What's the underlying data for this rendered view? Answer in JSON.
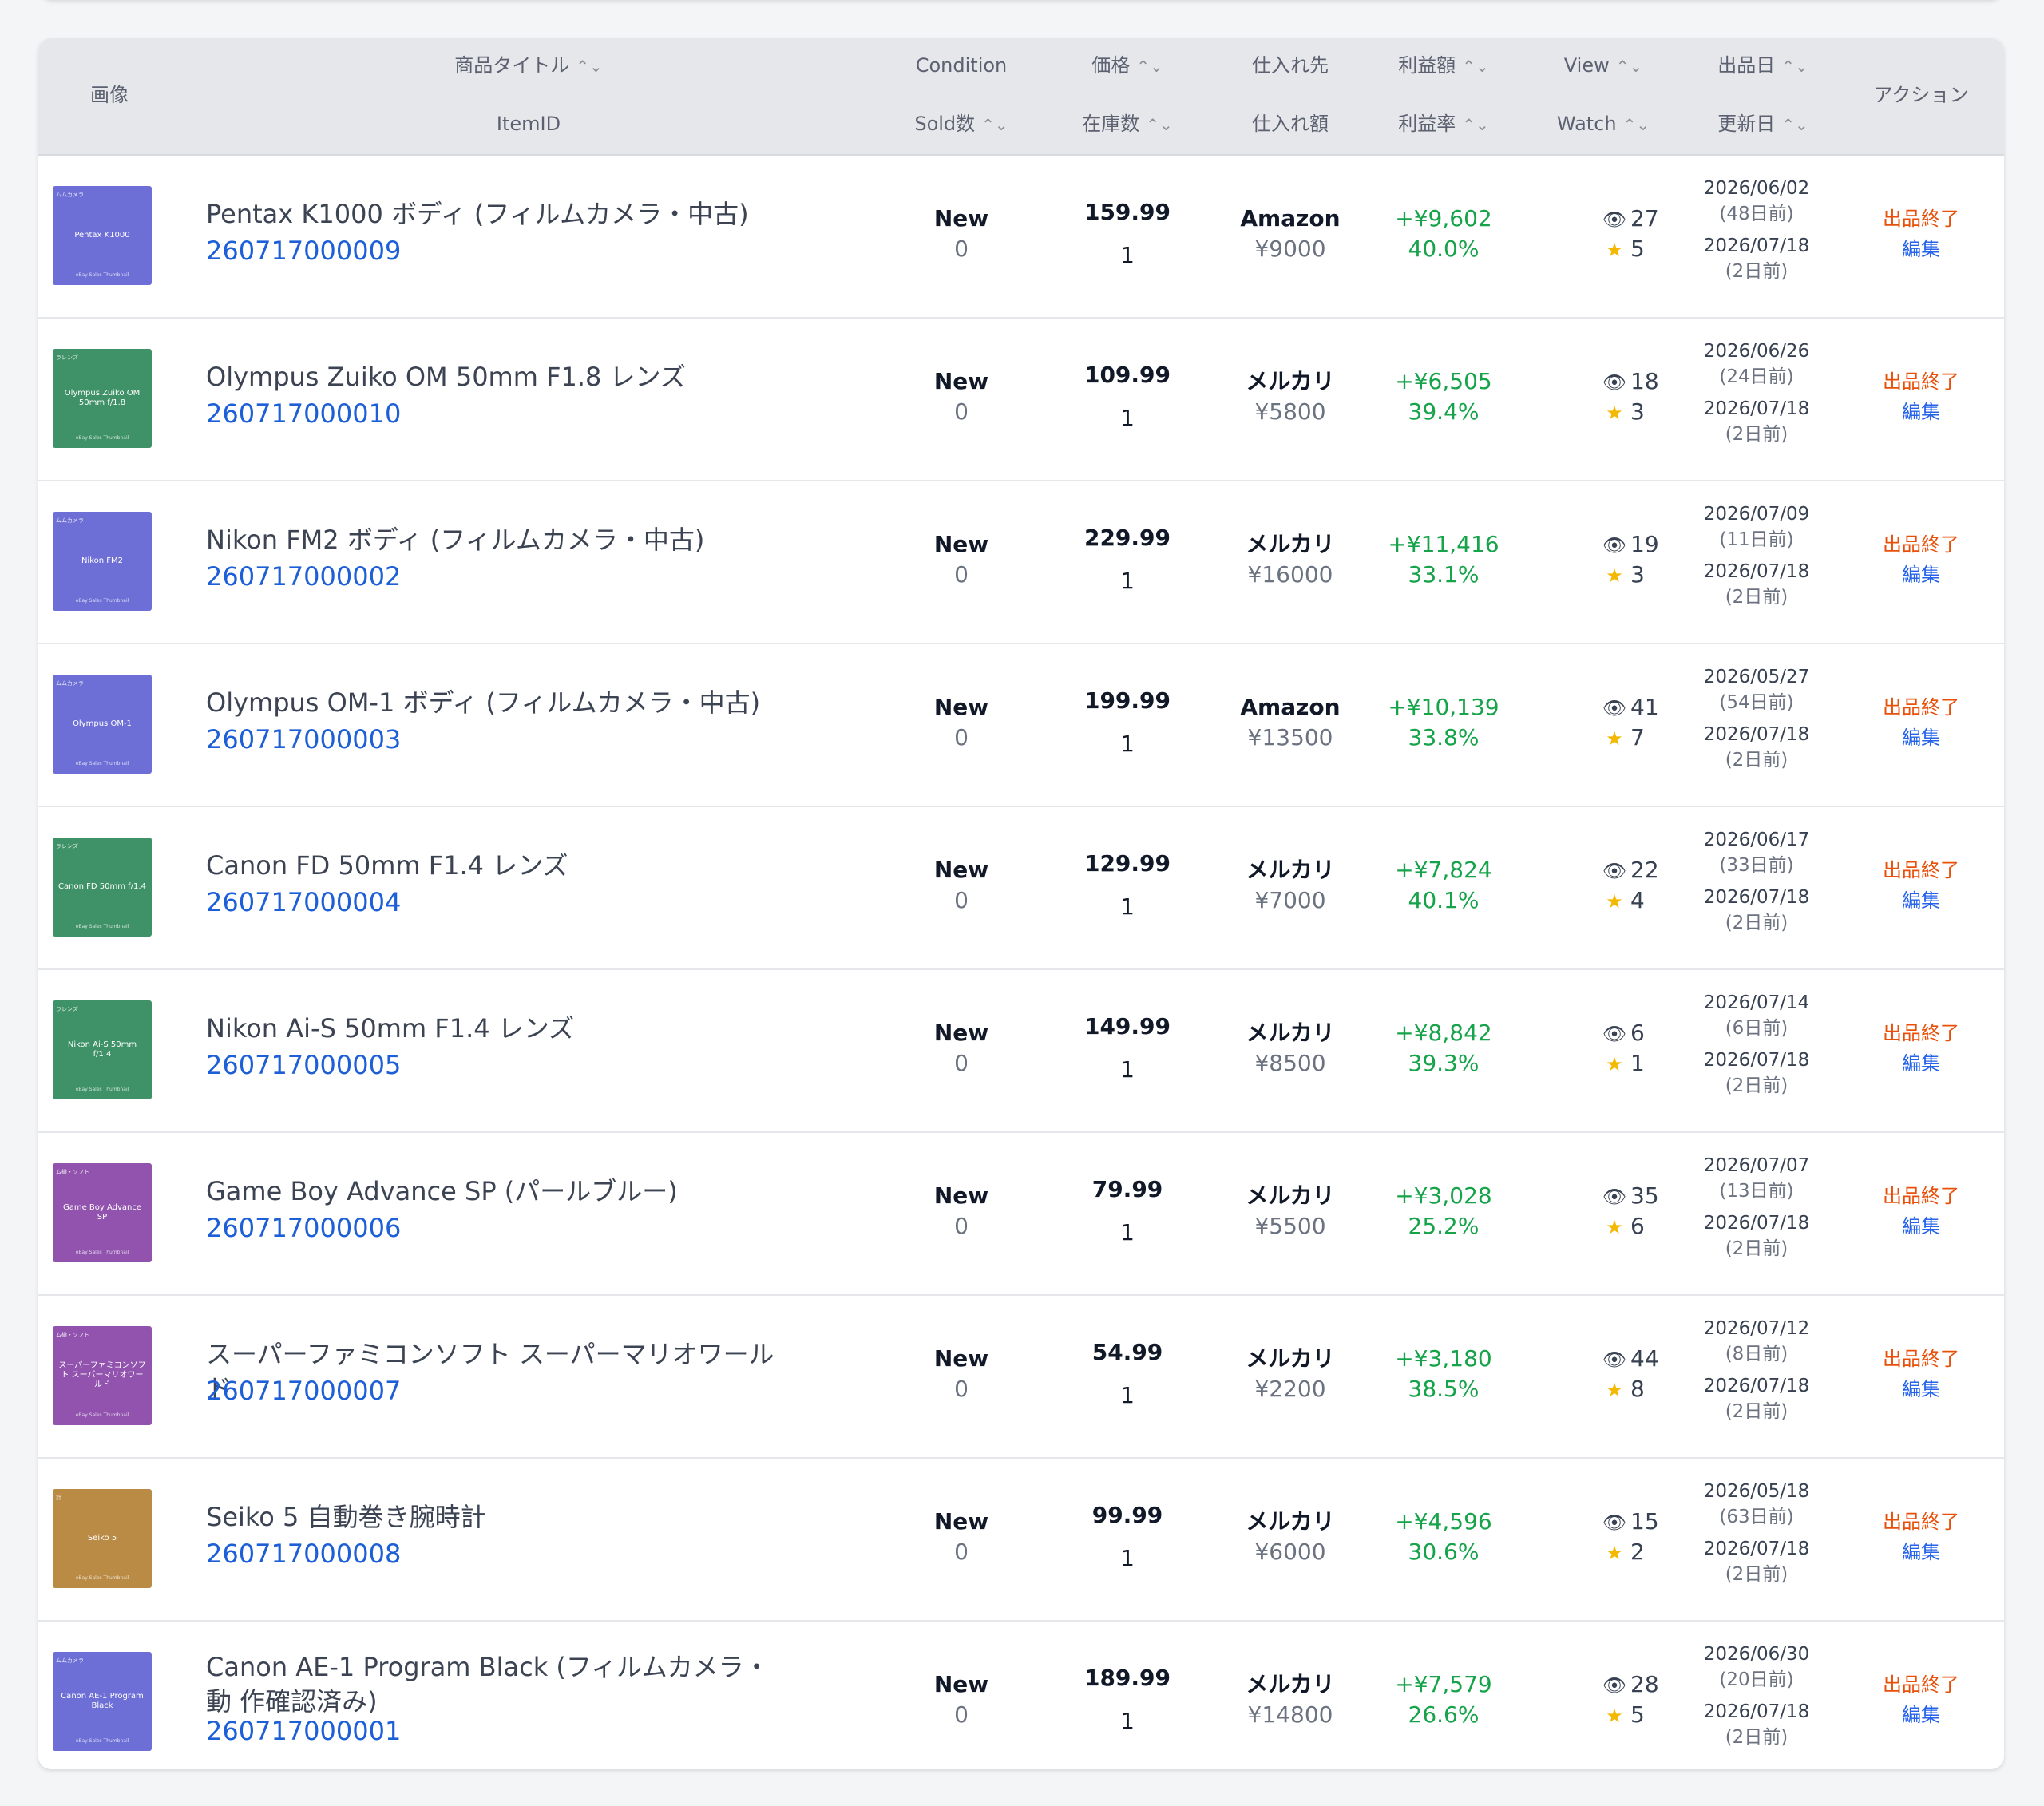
{
  "headers": {
    "image": "画像",
    "title": "商品タイトル",
    "itemid": "ItemID",
    "condition": "Condition",
    "sold": "Sold数",
    "price": "価格",
    "stock": "在庫数",
    "supplier": "仕入れ先",
    "cost": "仕入れ額",
    "profit": "利益額",
    "profit_rate": "利益率",
    "view": "View",
    "watch": "Watch",
    "listed": "出品日",
    "updated": "更新日",
    "action": "アクション"
  },
  "rows": [
    {
      "thumb_cat": "ムムカメラ",
      "thumb_text": "Pentax K1000",
      "thumb_src": "eBay Sales Thumbnail",
      "thumb_color": "#6e6fd6",
      "title": "Pentax K1000 ボディ (フィルムカメラ・中古)",
      "itemid": "260717000009",
      "condition": "New",
      "sold": "0",
      "price": "159.99",
      "stock": "1",
      "supplier": "Amazon",
      "cost": "¥9000",
      "profit": "+¥9,602",
      "rate": "40.0%",
      "view": "27",
      "watch": "5",
      "listed": "2026/06/02",
      "listed_ago": "(48日前)",
      "updated": "2026/07/18",
      "updated_ago": "(2日前)",
      "end": "出品終了",
      "edit": "編集"
    },
    {
      "thumb_cat": "ラレンズ",
      "thumb_text": "Olympus Zuiko OM 50mm f/1.8",
      "thumb_src": "eBay Sales Thumbnail",
      "thumb_color": "#3f9167",
      "title": "Olympus Zuiko OM 50mm F1.8 レンズ",
      "itemid": "260717000010",
      "condition": "New",
      "sold": "0",
      "price": "109.99",
      "stock": "1",
      "supplier": "メルカリ",
      "cost": "¥5800",
      "profit": "+¥6,505",
      "rate": "39.4%",
      "view": "18",
      "watch": "3",
      "listed": "2026/06/26",
      "listed_ago": "(24日前)",
      "updated": "2026/07/18",
      "updated_ago": "(2日前)",
      "end": "出品終了",
      "edit": "編集"
    },
    {
      "thumb_cat": "ムムカメラ",
      "thumb_text": "Nikon FM2",
      "thumb_src": "eBay Sales Thumbnail",
      "thumb_color": "#6e6fd6",
      "title": "Nikon FM2 ボディ (フィルムカメラ・中古)",
      "itemid": "260717000002",
      "condition": "New",
      "sold": "0",
      "price": "229.99",
      "stock": "1",
      "supplier": "メルカリ",
      "cost": "¥16000",
      "profit": "+¥11,416",
      "rate": "33.1%",
      "view": "19",
      "watch": "3",
      "listed": "2026/07/09",
      "listed_ago": "(11日前)",
      "updated": "2026/07/18",
      "updated_ago": "(2日前)",
      "end": "出品終了",
      "edit": "編集"
    },
    {
      "thumb_cat": "ムムカメラ",
      "thumb_text": "Olympus OM-1",
      "thumb_src": "eBay Sales Thumbnail",
      "thumb_color": "#6e6fd6",
      "title": "Olympus OM-1 ボディ (フィルムカメラ・中古)",
      "itemid": "260717000003",
      "condition": "New",
      "sold": "0",
      "price": "199.99",
      "stock": "1",
      "supplier": "Amazon",
      "cost": "¥13500",
      "profit": "+¥10,139",
      "rate": "33.8%",
      "view": "41",
      "watch": "7",
      "listed": "2026/05/27",
      "listed_ago": "(54日前)",
      "updated": "2026/07/18",
      "updated_ago": "(2日前)",
      "end": "出品終了",
      "edit": "編集"
    },
    {
      "thumb_cat": "ラレンズ",
      "thumb_text": "Canon FD 50mm f/1.4",
      "thumb_src": "eBay Sales Thumbnail",
      "thumb_color": "#3f9167",
      "title": "Canon FD 50mm F1.4 レンズ",
      "itemid": "260717000004",
      "condition": "New",
      "sold": "0",
      "price": "129.99",
      "stock": "1",
      "supplier": "メルカリ",
      "cost": "¥7000",
      "profit": "+¥7,824",
      "rate": "40.1%",
      "view": "22",
      "watch": "4",
      "listed": "2026/06/17",
      "listed_ago": "(33日前)",
      "updated": "2026/07/18",
      "updated_ago": "(2日前)",
      "end": "出品終了",
      "edit": "編集"
    },
    {
      "thumb_cat": "ラレンズ",
      "thumb_text": "Nikon Ai-S 50mm f/1.4",
      "thumb_src": "eBay Sales Thumbnail",
      "thumb_color": "#3f9167",
      "title": "Nikon Ai-S 50mm F1.4 レンズ",
      "itemid": "260717000005",
      "condition": "New",
      "sold": "0",
      "price": "149.99",
      "stock": "1",
      "supplier": "メルカリ",
      "cost": "¥8500",
      "profit": "+¥8,842",
      "rate": "39.3%",
      "view": "6",
      "watch": "1",
      "listed": "2026/07/14",
      "listed_ago": "(6日前)",
      "updated": "2026/07/18",
      "updated_ago": "(2日前)",
      "end": "出品終了",
      "edit": "編集"
    },
    {
      "thumb_cat": "ム機・ソフト",
      "thumb_text": "Game Boy Advance SP",
      "thumb_src": "eBay Sales Thumbnail",
      "thumb_color": "#9153ae",
      "title": "Game Boy Advance SP (パールブルー)",
      "itemid": "260717000006",
      "condition": "New",
      "sold": "0",
      "price": "79.99",
      "stock": "1",
      "supplier": "メルカリ",
      "cost": "¥5500",
      "profit": "+¥3,028",
      "rate": "25.2%",
      "view": "35",
      "watch": "6",
      "listed": "2026/07/07",
      "listed_ago": "(13日前)",
      "updated": "2026/07/18",
      "updated_ago": "(2日前)",
      "end": "出品終了",
      "edit": "編集"
    },
    {
      "thumb_cat": "ム機・ソフト",
      "thumb_text": "スーパーファミコンソフト スーパーマリオワールド",
      "thumb_src": "eBay Sales Thumbnail",
      "thumb_color": "#9153ae",
      "title": "スーパーファミコンソフト スーパーマリオワール ド",
      "itemid": "260717000007",
      "condition": "New",
      "sold": "0",
      "price": "54.99",
      "stock": "1",
      "supplier": "メルカリ",
      "cost": "¥2200",
      "profit": "+¥3,180",
      "rate": "38.5%",
      "view": "44",
      "watch": "8",
      "listed": "2026/07/12",
      "listed_ago": "(8日前)",
      "updated": "2026/07/18",
      "updated_ago": "(2日前)",
      "end": "出品終了",
      "edit": "編集"
    },
    {
      "thumb_cat": "計",
      "thumb_text": "Seiko 5",
      "thumb_src": "eBay Sales Thumbnail",
      "thumb_color": "#b98b45",
      "title": "Seiko 5 自動巻き腕時計",
      "itemid": "260717000008",
      "condition": "New",
      "sold": "0",
      "price": "99.99",
      "stock": "1",
      "supplier": "メルカリ",
      "cost": "¥6000",
      "profit": "+¥4,596",
      "rate": "30.6%",
      "view": "15",
      "watch": "2",
      "listed": "2026/05/18",
      "listed_ago": "(63日前)",
      "updated": "2026/07/18",
      "updated_ago": "(2日前)",
      "end": "出品終了",
      "edit": "編集"
    },
    {
      "thumb_cat": "ムムカメラ",
      "thumb_text": "Canon AE-1 Program Black",
      "thumb_src": "eBay Sales Thumbnail",
      "thumb_color": "#6e6fd6",
      "title": "Canon AE-1 Program Black (フィルムカメラ・動 作確認済み)",
      "itemid": "260717000001",
      "condition": "New",
      "sold": "0",
      "price": "189.99",
      "stock": "1",
      "supplier": "メルカリ",
      "cost": "¥14800",
      "profit": "+¥7,579",
      "rate": "26.6%",
      "view": "28",
      "watch": "5",
      "listed": "2026/06/30",
      "listed_ago": "(20日前)",
      "updated": "2026/07/18",
      "updated_ago": "(2日前)",
      "end": "出品終了",
      "edit": "編集"
    }
  ]
}
